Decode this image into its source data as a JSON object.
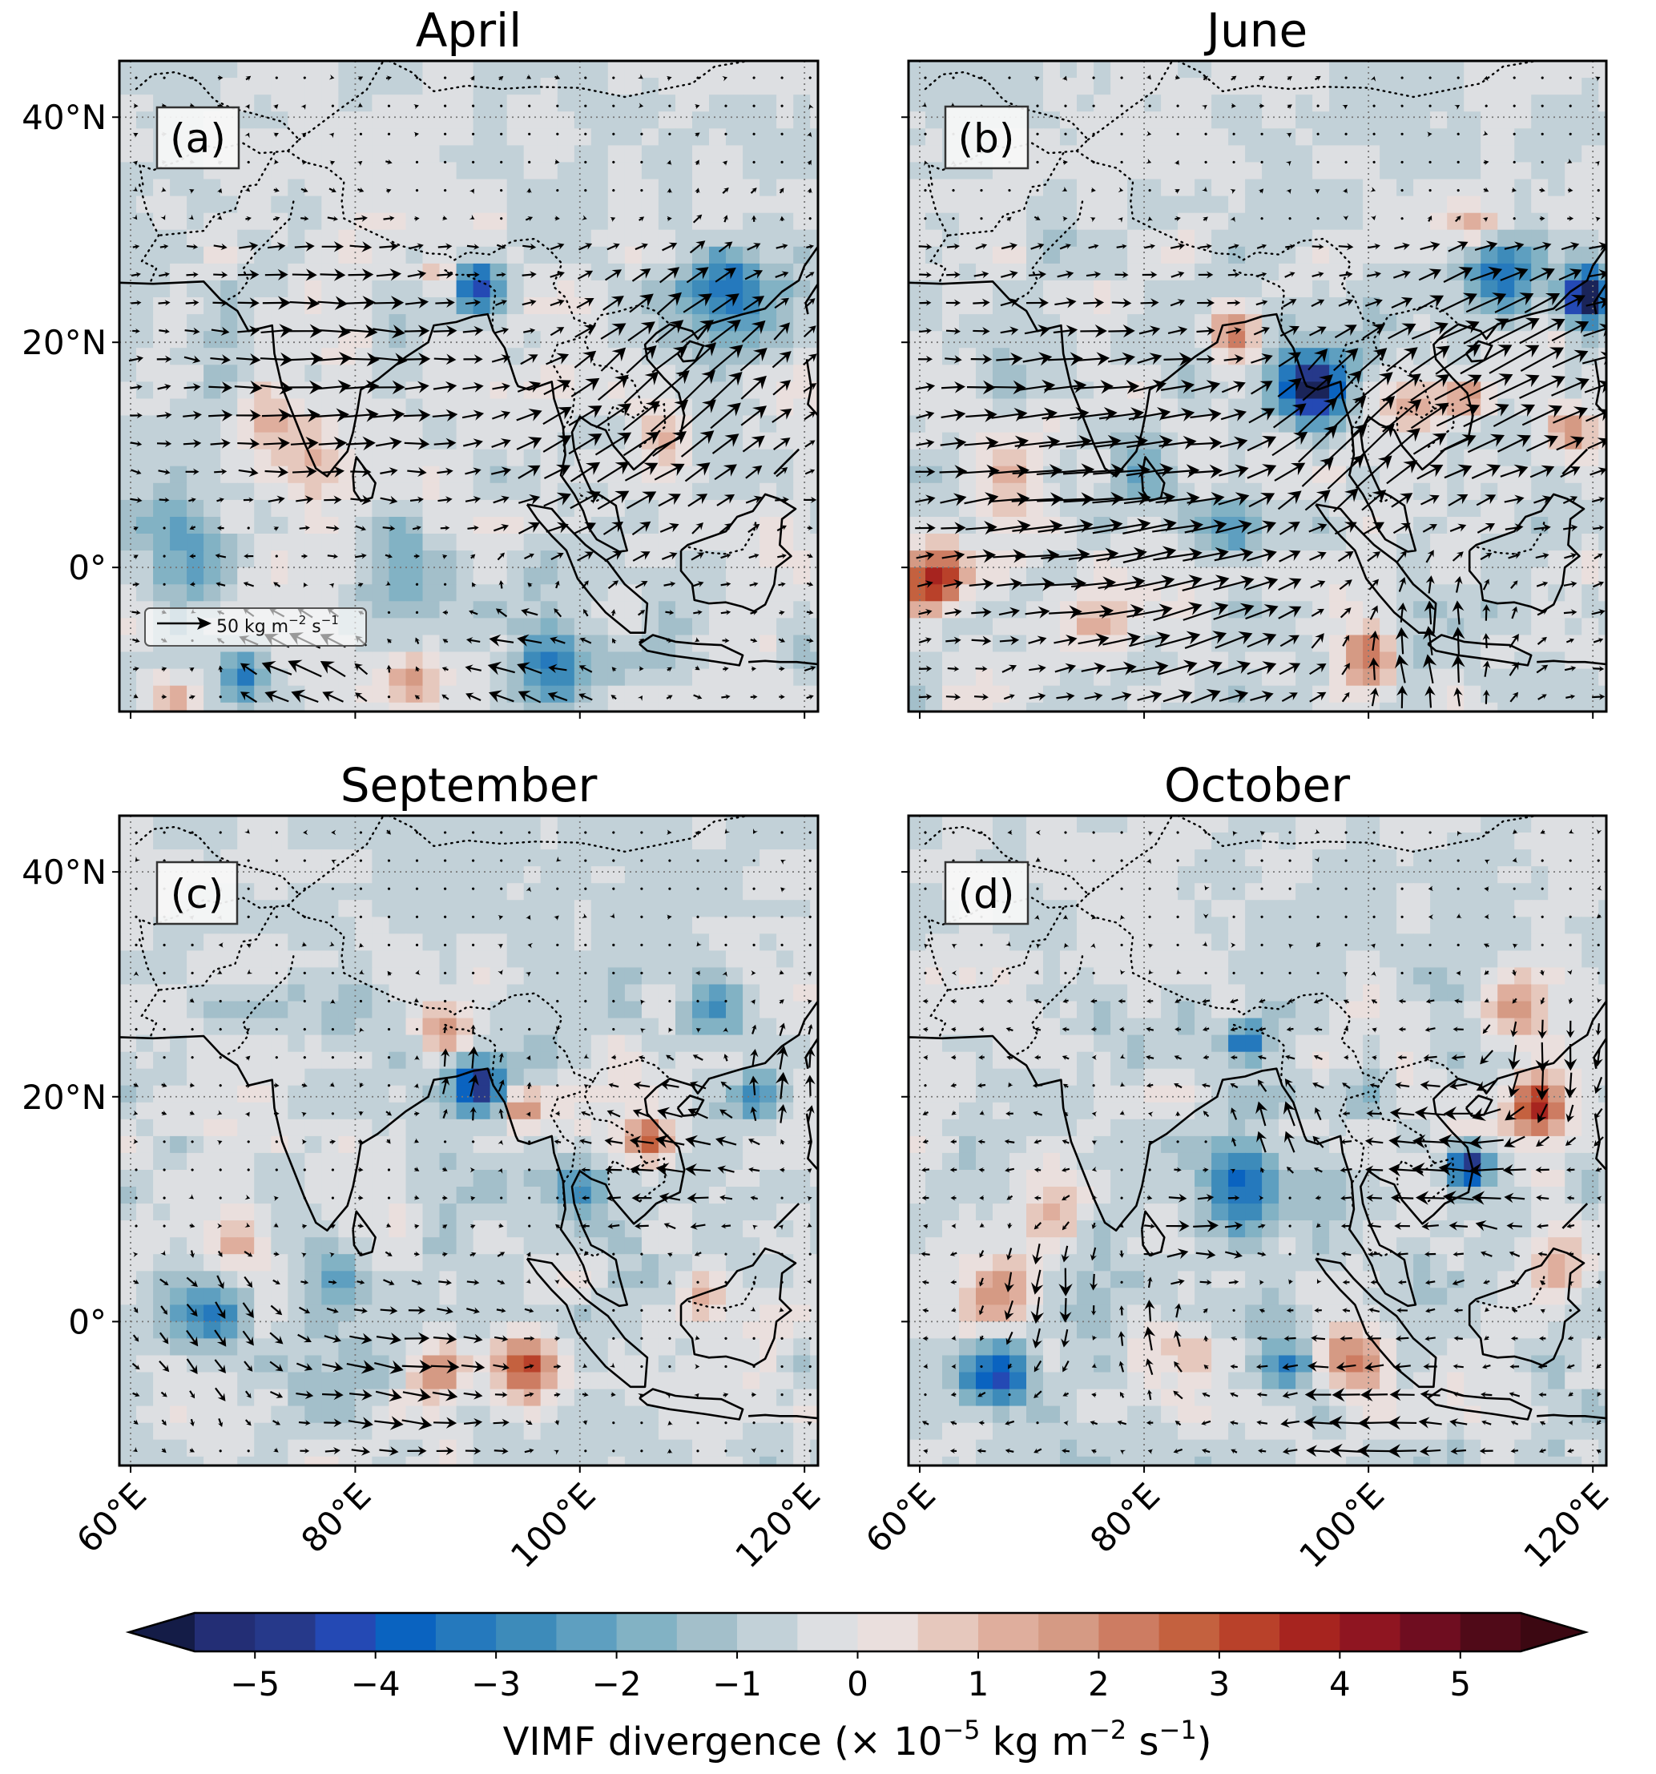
{
  "chart_data": {
    "type": "heatmap",
    "description_units": "VIMF divergence colour field with VIMF vectors",
    "colorbar": {
      "label_prefix": "VIMF divergence (× 10",
      "label_exp1": "−5",
      "label_mid": " kg m",
      "label_exp2": "−2",
      "label_mid2": " s",
      "label_exp3": "−1",
      "label_suffix": ")",
      "vmin": -5.5,
      "vmax": 5.5,
      "step": 0.5,
      "extend": "both",
      "ticks": [
        -5,
        -4,
        -3,
        -2,
        -1,
        0,
        1,
        2,
        3,
        4,
        5
      ],
      "tick_labels": [
        "−5",
        "−4",
        "−3",
        "−2",
        "−1",
        "0",
        "1",
        "2",
        "3",
        "4",
        "5"
      ],
      "colors": [
        "#1a2459",
        "#232e75",
        "#26398a",
        "#2449b4",
        "#0a63c0",
        "#2579bd",
        "#3d8bba",
        "#5e9fc0",
        "#82b2c4",
        "#a3bfca",
        "#c2d1d8",
        "#dddfe2",
        "#eadfdd",
        "#e6c8bd",
        "#dfae9d",
        "#d59a84",
        "#cd7c62",
        "#c4613f",
        "#b9412a",
        "#a7241f",
        "#8f1521",
        "#6f0d20",
        "#500a18"
      ],
      "under_color": "#141c47",
      "over_color": "#3c0812",
      "placement": "bottom"
    },
    "quiver_key": {
      "value": 50,
      "label_prefix": "50 kg m",
      "label_exp1": "−2",
      "label_mid": " s",
      "label_exp2": "−1",
      "panel": "a"
    },
    "xlim": [
      59,
      121.2
    ],
    "ylim": [
      -12.8,
      45
    ],
    "xticks": [
      60,
      80,
      100,
      120
    ],
    "xtick_labels": [
      "60°E",
      "80°E",
      "100°E",
      "120°E"
    ],
    "yticks": [
      0,
      20,
      40
    ],
    "ytick_labels": [
      "0°",
      "20°N",
      "40°N"
    ],
    "grid": true,
    "panels": [
      {
        "id": "a",
        "title": "April",
        "label": "(a)",
        "show_quiver_key": true,
        "wind": {
          "u0": 4,
          "v0": 0,
          "jets": [
            {
              "lon": 78,
              "lat": 18,
              "u": 16,
              "v": 0,
              "r": 12
            },
            {
              "lon": 110,
              "lat": 17,
              "u": 14,
              "v": 16,
              "r": 10
            },
            {
              "lon": 100,
              "lat": 8,
              "u": 10,
              "v": 6,
              "r": 9
            },
            {
              "lon": 75,
              "lat": -9,
              "u": -24,
              "v": 8,
              "r": 6
            },
            {
              "lon": 95,
              "lat": -9,
              "u": -18,
              "v": 4,
              "r": 8
            },
            {
              "lon": 68,
              "lat": 1,
              "u": -12,
              "v": 0,
              "r": 5
            }
          ]
        },
        "blobs": [
          {
            "lon": 91,
            "lat": 25,
            "value": -4.2,
            "r": 2.2
          },
          {
            "lon": 113,
            "lat": 25,
            "value": -3.2,
            "r": 4
          },
          {
            "lon": 70,
            "lat": -9.5,
            "value": -3.0,
            "r": 2.2
          },
          {
            "lon": 98,
            "lat": -9,
            "value": -2.6,
            "r": 3.5
          },
          {
            "lon": 85,
            "lat": -10,
            "value": 2.2,
            "r": 2.5
          },
          {
            "lon": 76,
            "lat": 9,
            "value": 1.8,
            "r": 3
          },
          {
            "lon": 72,
            "lat": 14,
            "value": 1.4,
            "r": 2.5
          },
          {
            "lon": 88,
            "lat": 26,
            "value": 1.8,
            "r": 1.8
          },
          {
            "lon": 107,
            "lat": 12,
            "value": 1.4,
            "r": 2.5
          },
          {
            "lon": 65,
            "lat": 1,
            "value": -2.0,
            "r": 4
          },
          {
            "lon": 84,
            "lat": 0,
            "value": -1.6,
            "r": 4
          },
          {
            "lon": 117,
            "lat": 3,
            "value": 1.2,
            "r": 3
          },
          {
            "lon": 64,
            "lat": -12,
            "value": 2.4,
            "r": 2.5
          }
        ]
      },
      {
        "id": "b",
        "title": "June",
        "label": "(b)",
        "show_quiver_key": false,
        "wind": {
          "u0": 6,
          "v0": 1,
          "jets": [
            {
              "lon": 75,
              "lat": 8,
              "u": 24,
              "v": 2,
              "r": 12
            },
            {
              "lon": 98,
              "lat": 12,
              "u": 14,
              "v": 20,
              "r": 7
            },
            {
              "lon": 112,
              "lat": 18,
              "u": 22,
              "v": 14,
              "r": 9
            },
            {
              "lon": 85,
              "lat": -5,
              "u": 14,
              "v": 6,
              "r": 9
            },
            {
              "lon": 105,
              "lat": -8,
              "u": -8,
              "v": 14,
              "r": 8
            }
          ]
        },
        "blobs": [
          {
            "lon": 95,
            "lat": 16,
            "value": -5.2,
            "r": 3.0
          },
          {
            "lon": 119.5,
            "lat": 24,
            "value": -5.4,
            "r": 2.2
          },
          {
            "lon": 112,
            "lat": 26,
            "value": -2.8,
            "r": 3.5
          },
          {
            "lon": 61,
            "lat": -1,
            "value": 4.6,
            "r": 2.8
          },
          {
            "lon": 88,
            "lat": 21,
            "value": 2.6,
            "r": 2.5
          },
          {
            "lon": 100,
            "lat": -8,
            "value": 2.8,
            "r": 2.5
          },
          {
            "lon": 104,
            "lat": 14,
            "value": 2.0,
            "r": 2.5
          },
          {
            "lon": 109,
            "lat": 15,
            "value": 2.2,
            "r": 2
          },
          {
            "lon": 68,
            "lat": 8,
            "value": 1.8,
            "r": 3
          },
          {
            "lon": 80,
            "lat": 8,
            "value": -1.8,
            "r": 3
          },
          {
            "lon": 110,
            "lat": 31,
            "value": 2.0,
            "r": 3
          },
          {
            "lon": 118,
            "lat": 12,
            "value": 2.0,
            "r": 2
          },
          {
            "lon": 88,
            "lat": 3,
            "value": -1.6,
            "r": 3
          },
          {
            "lon": 76,
            "lat": -5,
            "value": 1.8,
            "r": 3
          }
        ]
      },
      {
        "id": "c",
        "title": "September",
        "label": "(c)",
        "show_quiver_key": false,
        "wind": {
          "u0": 1,
          "v0": 0,
          "jets": [
            {
              "lon": 85,
              "lat": -5,
              "u": 16,
              "v": -2,
              "r": 9
            },
            {
              "lon": 68,
              "lat": -1,
              "u": 6,
              "v": -10,
              "r": 7
            },
            {
              "lon": 108,
              "lat": 15,
              "u": -16,
              "v": 2,
              "r": 8
            },
            {
              "lon": 90,
              "lat": 22,
              "u": 0,
              "v": 14,
              "r": 4
            },
            {
              "lon": 118,
              "lat": 22,
              "u": 2,
              "v": 14,
              "r": 5
            }
          ]
        },
        "blobs": [
          {
            "lon": 91,
            "lat": 21,
            "value": -4.8,
            "r": 2.2
          },
          {
            "lon": 95,
            "lat": -4,
            "value": 3.6,
            "r": 3.2
          },
          {
            "lon": 87,
            "lat": -4.5,
            "value": 2.4,
            "r": 2.5
          },
          {
            "lon": 106,
            "lat": 16,
            "value": 3.0,
            "r": 2
          },
          {
            "lon": 88,
            "lat": 26,
            "value": 2.6,
            "r": 2.4
          },
          {
            "lon": 95,
            "lat": 19,
            "value": 2.6,
            "r": 1.5
          },
          {
            "lon": 67,
            "lat": 1,
            "value": -2.2,
            "r": 3.5
          },
          {
            "lon": 78,
            "lat": 4,
            "value": -2.0,
            "r": 3
          },
          {
            "lon": 116,
            "lat": 20,
            "value": -2.2,
            "r": 2
          },
          {
            "lon": 112,
            "lat": 28,
            "value": -1.8,
            "r": 3
          },
          {
            "lon": 70,
            "lat": 7,
            "value": 1.6,
            "r": 3
          },
          {
            "lon": 111,
            "lat": 2,
            "value": 1.8,
            "r": 2
          },
          {
            "lon": 100,
            "lat": 12,
            "value": -1.8,
            "r": 2.5
          }
        ]
      },
      {
        "id": "d",
        "title": "October",
        "label": "(d)",
        "show_quiver_key": false,
        "wind": {
          "u0": -3,
          "v0": 0,
          "jets": [
            {
              "lon": 85,
              "lat": 8,
              "u": 16,
              "v": 0,
              "r": 6
            },
            {
              "lon": 72,
              "lat": 2,
              "u": 2,
              "v": -16,
              "r": 6
            },
            {
              "lon": 80,
              "lat": -1,
              "u": 0,
              "v": 14,
              "r": 5
            },
            {
              "lon": 116,
              "lat": 22,
              "u": 4,
              "v": -18,
              "r": 6
            },
            {
              "lon": 108,
              "lat": 15,
              "u": -18,
              "v": 2,
              "r": 7
            },
            {
              "lon": 92,
              "lat": 18,
              "u": -2,
              "v": 16,
              "r": 4
            },
            {
              "lon": 100,
              "lat": -10,
              "u": -14,
              "v": 0,
              "r": 8
            }
          ]
        },
        "blobs": [
          {
            "lon": 67,
            "lat": -5,
            "value": -4.0,
            "r": 3
          },
          {
            "lon": 89,
            "lat": 12,
            "value": -3.4,
            "r": 4
          },
          {
            "lon": 89,
            "lat": 25,
            "value": -3.6,
            "r": 1.8
          },
          {
            "lon": 109,
            "lat": 14,
            "value": -4.6,
            "r": 1.8
          },
          {
            "lon": 115,
            "lat": 19,
            "value": 4.0,
            "r": 2.8
          },
          {
            "lon": 113,
            "lat": 28,
            "value": 2.6,
            "r": 3
          },
          {
            "lon": 98,
            "lat": -3,
            "value": 2.8,
            "r": 3
          },
          {
            "lon": 67,
            "lat": 3,
            "value": 2.4,
            "r": 3
          },
          {
            "lon": 72,
            "lat": 11,
            "value": 2.0,
            "r": 3
          },
          {
            "lon": 84,
            "lat": -3,
            "value": 1.8,
            "r": 2.5
          },
          {
            "lon": 93,
            "lat": -4,
            "value": -2.4,
            "r": 2
          },
          {
            "lon": 117,
            "lat": 5,
            "value": 1.8,
            "r": 2.5
          },
          {
            "lon": 100,
            "lat": 20,
            "value": -1.4,
            "r": 2
          }
        ]
      }
    ]
  }
}
